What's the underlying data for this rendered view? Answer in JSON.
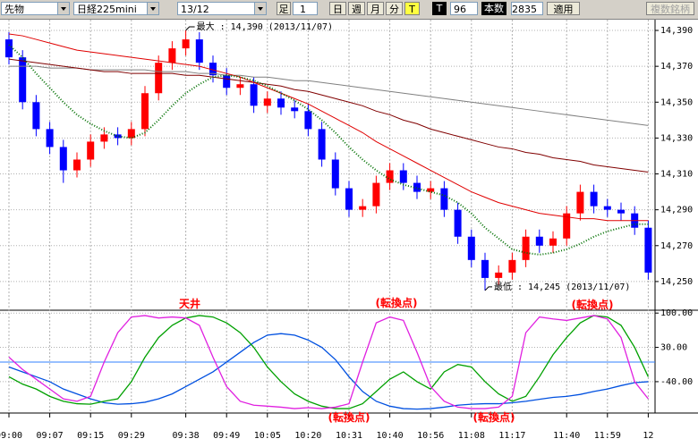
{
  "toolbar": {
    "market": "先物",
    "product": "日経225mini",
    "month": "13/12",
    "bar_label": "足",
    "bar_count": "1",
    "day": "日",
    "week": "週",
    "month_btn": "月",
    "minute": "分",
    "tick": "T",
    "tick2": "T",
    "tick_value": "96",
    "bars_label": "本数",
    "bars_value": "2835",
    "apply": "適用",
    "multi": "複数銘柄"
  },
  "chart_data": [
    {
      "type": "candlestick",
      "categories": [
        "09:00",
        null,
        null,
        "09:07",
        null,
        null,
        "09:15",
        null,
        null,
        "09:29",
        null,
        null,
        null,
        "09:38",
        null,
        null,
        "09:49",
        null,
        null,
        "10:05",
        null,
        null,
        "10:20",
        null,
        null,
        "10:31",
        null,
        null,
        "10:40",
        null,
        null,
        "10:56",
        null,
        null,
        "11:08",
        null,
        null,
        "11:17",
        null,
        null,
        null,
        "11:40",
        null,
        null,
        "11:59",
        null,
        null,
        "12"
      ],
      "open": [
        14385,
        14375,
        14350,
        14335,
        14325,
        14312,
        14318,
        14328,
        14332,
        14330,
        14335,
        14355,
        14372,
        14380,
        14385,
        14372,
        14365,
        14358,
        14360,
        14348,
        14352,
        14347,
        14345,
        14335,
        14318,
        14302,
        14290,
        14292,
        14305,
        14312,
        14305,
        14300,
        14302,
        14290,
        14275,
        14262,
        14252,
        14255,
        14262,
        14275,
        14270,
        14274,
        14288,
        14300,
        14292,
        14290,
        14288,
        14280
      ],
      "high": [
        14389,
        14379,
        14354,
        14339,
        14329,
        14322,
        14332,
        14336,
        14336,
        14339,
        14359,
        14376,
        14384,
        14390,
        14389,
        14376,
        14369,
        14364,
        14364,
        14356,
        14356,
        14351,
        14349,
        14339,
        14322,
        14306,
        14296,
        14309,
        14316,
        14316,
        14309,
        14306,
        14306,
        14294,
        14279,
        14266,
        14259,
        14266,
        14279,
        14279,
        14278,
        14292,
        14304,
        14304,
        14296,
        14294,
        14292,
        14284
      ],
      "low": [
        14371,
        14346,
        14331,
        14321,
        14305,
        14308,
        14314,
        14324,
        14326,
        14326,
        14331,
        14351,
        14368,
        14376,
        14368,
        14361,
        14354,
        14354,
        14344,
        14344,
        14343,
        14341,
        14331,
        14314,
        14298,
        14286,
        14286,
        14288,
        14301,
        14301,
        14296,
        14296,
        14286,
        14271,
        14258,
        14245,
        14248,
        14251,
        14258,
        14266,
        14266,
        14270,
        14284,
        14288,
        14286,
        14284,
        14276,
        14251
      ],
      "close": [
        14375,
        14350,
        14335,
        14325,
        14312,
        14318,
        14328,
        14332,
        14330,
        14335,
        14355,
        14372,
        14380,
        14385,
        14372,
        14365,
        14358,
        14360,
        14348,
        14352,
        14347,
        14345,
        14335,
        14318,
        14302,
        14290,
        14292,
        14305,
        14312,
        14305,
        14300,
        14302,
        14290,
        14275,
        14262,
        14252,
        14255,
        14262,
        14275,
        14270,
        14274,
        14288,
        14300,
        14292,
        14290,
        14288,
        14280,
        14255
      ],
      "up_color": "#ff0000",
      "down_color": "#0000ff",
      "series": [
        {
          "color": "#808080",
          "values": [
            14370,
            14370,
            14370,
            14369,
            14369,
            14369,
            14368,
            14368,
            14368,
            14368,
            14368,
            14367,
            14367,
            14367,
            14366,
            14366,
            14365,
            14365,
            14364,
            14364,
            14363,
            14362,
            14362,
            14361,
            14360,
            14359,
            14358,
            14357,
            14356,
            14355,
            14354,
            14353,
            14352,
            14351,
            14350,
            14349,
            14348,
            14347,
            14346,
            14345,
            14344,
            14343,
            14342,
            14341,
            14340,
            14339,
            14338,
            14337
          ]
        },
        {
          "color": "#800000",
          "values": [
            14374,
            14373,
            14372,
            14371,
            14370,
            14369,
            14368,
            14367,
            14367,
            14366,
            14366,
            14366,
            14366,
            14365,
            14365,
            14364,
            14363,
            14362,
            14361,
            14360,
            14359,
            14357,
            14356,
            14354,
            14352,
            14350,
            14348,
            14345,
            14343,
            14340,
            14338,
            14335,
            14333,
            14331,
            14329,
            14327,
            14325,
            14324,
            14322,
            14321,
            14319,
            14318,
            14317,
            14315,
            14314,
            14313,
            14312,
            14311
          ]
        },
        {
          "color": "#e00000",
          "values": [
            14388,
            14387,
            14385,
            14383,
            14381,
            14379,
            14378,
            14377,
            14376,
            14375,
            14374,
            14373,
            14372,
            14371,
            14370,
            14368,
            14366,
            14364,
            14361,
            14358,
            14355,
            14352,
            14349,
            14345,
            14341,
            14337,
            14333,
            14328,
            14324,
            14320,
            14316,
            14312,
            14308,
            14304,
            14300,
            14297,
            14294,
            14292,
            14290,
            14288,
            14287,
            14286,
            14285,
            14285,
            14284,
            14284,
            14284,
            14284
          ]
        },
        {
          "color": "#007000",
          "dotted": true,
          "values": [
            14382,
            14375,
            14366,
            14358,
            14350,
            14343,
            14338,
            14334,
            14331,
            14330,
            14333,
            14340,
            14348,
            14355,
            14360,
            14364,
            14365,
            14364,
            14362,
            14359,
            14355,
            14351,
            14346,
            14340,
            14333,
            14325,
            14318,
            14312,
            14307,
            14304,
            14302,
            14300,
            14298,
            14294,
            14288,
            14280,
            14274,
            14268,
            14266,
            14265,
            14266,
            14268,
            14271,
            14275,
            14278,
            14280,
            14282,
            14282
          ]
        }
      ],
      "ylim": [
        14234.5,
        14396
      ],
      "yticks": [
        {
          "value": 14250,
          "label": "14,250"
        },
        {
          "value": 14270,
          "label": "14,270"
        },
        {
          "value": 14290,
          "label": "14,290"
        },
        {
          "value": 14310,
          "label": "14,310"
        },
        {
          "value": 14330,
          "label": "14,330"
        },
        {
          "value": 14350,
          "label": "14,350"
        },
        {
          "value": 14370,
          "label": "14,370"
        },
        {
          "value": 14390,
          "label": "14,390"
        }
      ],
      "grid": true,
      "max_label": "最大 : 14,390 (2013/11/07)",
      "min_label": "最低 : 14,245 (2013/11/07)"
    },
    {
      "type": "line",
      "series": [
        {
          "color": "#0050e0",
          "values": [
            -10,
            -20,
            -30,
            -40,
            -55,
            -65,
            -75,
            -83,
            -86,
            -85,
            -82,
            -75,
            -65,
            -50,
            -35,
            -20,
            0,
            20,
            40,
            55,
            58,
            55,
            45,
            30,
            5,
            -30,
            -60,
            -80,
            -90,
            -95,
            -96,
            -95,
            -92,
            -88,
            -86,
            -85,
            -85,
            -83,
            -80,
            -76,
            -72,
            -70,
            -66,
            -60,
            -55,
            -48,
            -42,
            -40
          ]
        },
        {
          "color": "#00a000",
          "values": [
            -30,
            -45,
            -55,
            -70,
            -80,
            -85,
            -86,
            -80,
            -75,
            -40,
            10,
            50,
            75,
            90,
            95,
            92,
            80,
            60,
            30,
            -10,
            -40,
            -65,
            -80,
            -90,
            -95,
            -95,
            -85,
            -60,
            -35,
            -20,
            -40,
            -55,
            -20,
            -5,
            -10,
            -40,
            -65,
            -80,
            -70,
            -30,
            15,
            50,
            80,
            95,
            92,
            75,
            30,
            -30
          ]
        },
        {
          "color": "#e020e0",
          "values": [
            10,
            -15,
            -35,
            -55,
            -75,
            -80,
            -70,
            0,
            60,
            92,
            95,
            90,
            92,
            90,
            75,
            10,
            -50,
            -80,
            -88,
            -90,
            -92,
            -95,
            -93,
            -95,
            -92,
            -85,
            0,
            80,
            92,
            85,
            20,
            -50,
            -80,
            -92,
            -95,
            -95,
            -92,
            -70,
            60,
            92,
            88,
            85,
            90,
            95,
            88,
            50,
            -40,
            -75
          ]
        }
      ],
      "ylim": [
        -104,
        104
      ],
      "yticks": [
        {
          "value": 100,
          "label": "100.00"
        },
        {
          "value": 30,
          "label": "30.00"
        },
        {
          "value": -40,
          "label": "-40.00"
        }
      ],
      "hlines": [
        0
      ],
      "annotations": [
        "天井",
        "(転換点)",
        "(転換点)",
        "(転換点)",
        "(転換点)"
      ]
    }
  ]
}
